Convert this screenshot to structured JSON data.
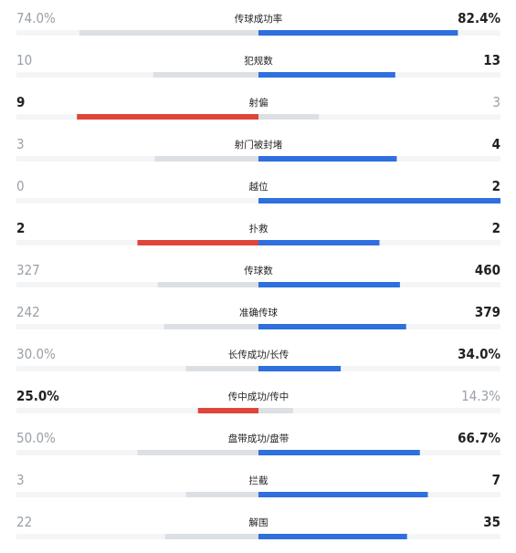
{
  "rows": [
    {
      "label": "传球成功率",
      "values": [
        74.0,
        82.4
      ],
      "value_labels": [
        "74.0%",
        "82.4%"
      ],
      "percent": true
    },
    {
      "label": "犯规数",
      "values": [
        10,
        13
      ]
    },
    {
      "label": "射偏",
      "values": [
        9,
        3
      ]
    },
    {
      "label": "射门被封堵",
      "values": [
        3,
        4
      ]
    },
    {
      "label": "越位",
      "values": [
        0,
        2
      ]
    },
    {
      "label": "扑救",
      "values": [
        2,
        2
      ]
    },
    {
      "label": "传球数",
      "values": [
        327,
        460
      ]
    },
    {
      "label": "准确传球",
      "values": [
        242,
        379
      ]
    },
    {
      "label": "长传成功/长传",
      "values": [
        30.0,
        34.0
      ],
      "value_labels": [
        "30.0%",
        "34.0%"
      ],
      "percent": true
    },
    {
      "label": "传中成功/传中",
      "values": [
        25.0,
        14.3
      ],
      "value_labels": [
        "25.0%",
        "14.3%"
      ],
      "percent": true
    },
    {
      "label": "盘带成功/盘带",
      "values": [
        50.0,
        66.7
      ],
      "value_labels": [
        "50.0%",
        "66.7%"
      ],
      "percent": true
    },
    {
      "label": "拦截",
      "values": [
        3,
        7
      ]
    },
    {
      "label": "解围",
      "values": [
        22,
        35
      ]
    }
  ],
  "colors": {
    "left": "#e0453a",
    "right": "#2f6fde",
    "loser": "#dcdfe3",
    "track": "#f4f5f7"
  }
}
